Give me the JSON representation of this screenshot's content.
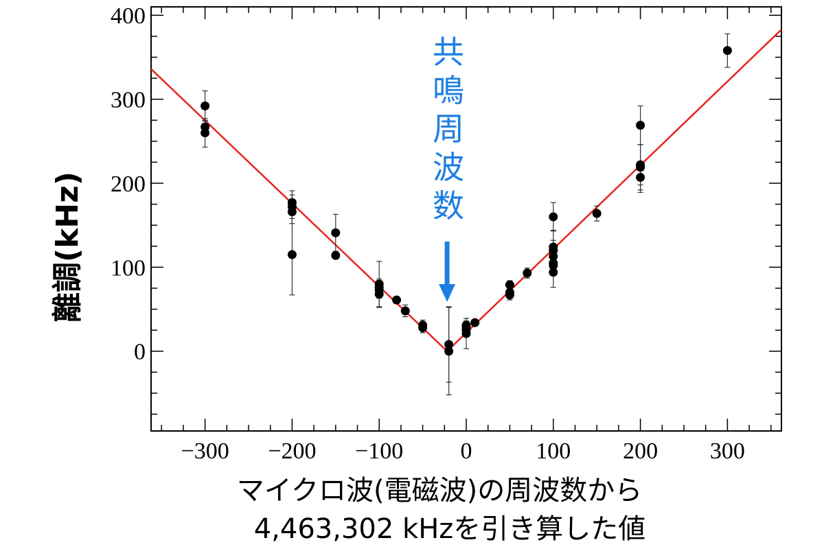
{
  "chart_data": {
    "type": "scatter",
    "title": "",
    "xlabel_lines": [
      "マイクロ波(電磁波)の周波数から",
      "4,463,302 kHzを引き算した値"
    ],
    "ylabel": "離調(kHz)",
    "xlim": [
      -362,
      362
    ],
    "ylim": [
      -95,
      410
    ],
    "x_ticks": [
      -300,
      -200,
      -100,
      0,
      100,
      200,
      300
    ],
    "x_tick_labels": [
      "−300",
      "−200",
      "−100",
      "0",
      "100",
      "200",
      "300"
    ],
    "y_ticks": [
      0,
      100,
      200,
      300,
      400
    ],
    "y_tick_labels": [
      "0",
      "100",
      "200",
      "300",
      "400"
    ],
    "grid": false,
    "annotation": {
      "text_chars": [
        "共",
        "鳴",
        "周",
        "波",
        "数"
      ],
      "arrow_x": -22,
      "color": "#1e7ee0"
    },
    "fit_line": {
      "color": "#e8231f",
      "vertex": [
        -22,
        0
      ],
      "left_end": [
        -362,
        336
      ],
      "right_end": [
        362,
        383
      ]
    },
    "series": [
      {
        "marker_color": "#000000",
        "points": [
          {
            "x": -300,
            "y": 292,
            "err": 18
          },
          {
            "x": -300,
            "y": 267,
            "err": 8
          },
          {
            "x": -300,
            "y": 260,
            "err": 17
          },
          {
            "x": -200,
            "y": 177,
            "err": 14
          },
          {
            "x": -200,
            "y": 172,
            "err": 14
          },
          {
            "x": -200,
            "y": 166,
            "err": 14
          },
          {
            "x": -200,
            "y": 115,
            "err": 48
          },
          {
            "x": -150,
            "y": 141,
            "err": 22
          },
          {
            "x": -150,
            "y": 114,
            "err": 0
          },
          {
            "x": -100,
            "y": 80,
            "err": 27
          },
          {
            "x": -100,
            "y": 76,
            "err": 10
          },
          {
            "x": -100,
            "y": 73,
            "err": 10
          },
          {
            "x": -100,
            "y": 68,
            "err": 16
          },
          {
            "x": -80,
            "y": 61,
            "err": 4
          },
          {
            "x": -70,
            "y": 48,
            "err": 7
          },
          {
            "x": -50,
            "y": 31,
            "err": 6
          },
          {
            "x": -50,
            "y": 28,
            "err": 6
          },
          {
            "x": -20,
            "y": 8,
            "err": 45
          },
          {
            "x": -20,
            "y": 0,
            "err": 52
          },
          {
            "x": 0,
            "y": 31,
            "err": 8
          },
          {
            "x": 0,
            "y": 28,
            "err": 8
          },
          {
            "x": 0,
            "y": 25,
            "err": 8
          },
          {
            "x": 0,
            "y": 21,
            "err": 18
          },
          {
            "x": 10,
            "y": 34,
            "err": 3
          },
          {
            "x": 50,
            "y": 79,
            "err": 5
          },
          {
            "x": 50,
            "y": 70,
            "err": 6
          },
          {
            "x": 50,
            "y": 67,
            "err": 6
          },
          {
            "x": 70,
            "y": 93,
            "err": 6
          },
          {
            "x": 100,
            "y": 160,
            "err": 17
          },
          {
            "x": 100,
            "y": 124,
            "err": 20
          },
          {
            "x": 100,
            "y": 120,
            "err": 12
          },
          {
            "x": 100,
            "y": 113,
            "err": 15
          },
          {
            "x": 100,
            "y": 105,
            "err": 12
          },
          {
            "x": 100,
            "y": 102,
            "err": 12
          },
          {
            "x": 100,
            "y": 94,
            "err": 18
          },
          {
            "x": 150,
            "y": 164,
            "err": 9
          },
          {
            "x": 200,
            "y": 269,
            "err": 23
          },
          {
            "x": 200,
            "y": 222,
            "err": 24
          },
          {
            "x": 200,
            "y": 219,
            "err": 27
          },
          {
            "x": 200,
            "y": 207,
            "err": 18
          },
          {
            "x": 300,
            "y": 358,
            "err": 20
          }
        ]
      }
    ]
  }
}
